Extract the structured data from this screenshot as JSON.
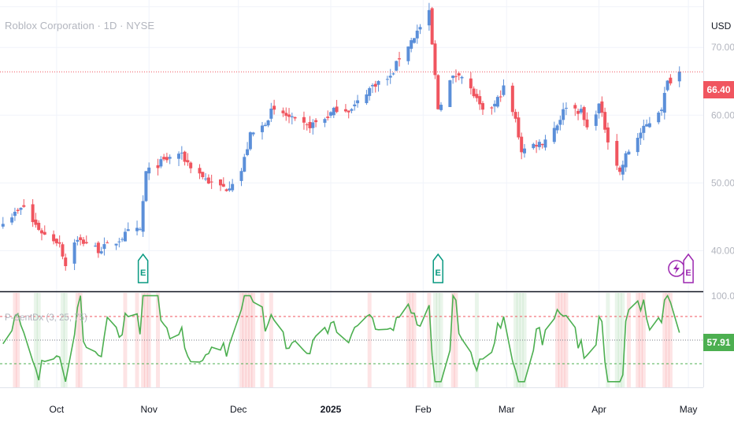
{
  "header": {
    "symbol_title": "Roblox Corporation · 1D · NYSE",
    "currency": "USD",
    "last_price_label": "66.40"
  },
  "indicator": {
    "title": "P-SentDx (3, 25, 75)",
    "value_label": "57.91",
    "line_color": "#4caf50",
    "upper_level": 75,
    "lower_level": 25,
    "mid_level": 50,
    "ylim": [
      0,
      100
    ],
    "axis_label": "100.00"
  },
  "colors": {
    "up_candle": "#5b8fd9",
    "down_candle": "#f0555f",
    "price_line": "#f0555f",
    "earnings": "#089981",
    "dividend": "#9c27b0",
    "grid": "#f0f3fa",
    "oversold_line": "#4caf50",
    "overbought_line": "#f0555f"
  },
  "events": [
    {
      "type": "earnings-icon",
      "label": "E",
      "date": "2024-10-30"
    },
    {
      "type": "earnings-icon",
      "label": "E",
      "date": "2025-02-06"
    },
    {
      "type": "lightning-icon",
      "label": "",
      "date": "2025-04-27"
    },
    {
      "type": "earnings-icon",
      "label": "E",
      "date": "2025-05-01"
    }
  ],
  "chart_data": {
    "type": "candlestick",
    "title": "Roblox Corporation · 1D · NYSE",
    "ylim": [
      34,
      77
    ],
    "y_ticks": [
      40,
      50,
      60,
      70
    ],
    "x_ticks": [
      "Oct",
      "Nov",
      "Dec",
      "2025",
      "Feb",
      "Mar",
      "Apr",
      "May"
    ],
    "x_range": [
      "2024-09-12",
      "2025-05-06"
    ],
    "grid": true,
    "last_price": 66.4,
    "anchors": [
      [
        "2024-09-13",
        44.5
      ],
      [
        "2024-09-18",
        45.7
      ],
      [
        "2024-09-20",
        46.5
      ],
      [
        "2024-09-23",
        44.2
      ],
      [
        "2024-09-27",
        42.3
      ],
      [
        "2024-10-02",
        41.2
      ],
      [
        "2024-10-04",
        37.8
      ],
      [
        "2024-10-07",
        41.5
      ],
      [
        "2024-10-11",
        41.2
      ],
      [
        "2024-10-15",
        40.1
      ],
      [
        "2024-10-17",
        40.5
      ],
      [
        "2024-10-21",
        41.3
      ],
      [
        "2024-10-25",
        42.7
      ],
      [
        "2024-10-29",
        43.0
      ],
      [
        "2024-10-31",
        51.5
      ],
      [
        "2024-11-05",
        53.0
      ],
      [
        "2024-11-11",
        54.4
      ],
      [
        "2024-11-15",
        52.5
      ],
      [
        "2024-11-19",
        51.0
      ],
      [
        "2024-11-22",
        49.8
      ],
      [
        "2024-11-27",
        49.2
      ],
      [
        "2024-12-02",
        51.8
      ],
      [
        "2024-12-05",
        57.0
      ],
      [
        "2024-12-09",
        58.3
      ],
      [
        "2024-12-12",
        60.5
      ],
      [
        "2024-12-16",
        60.2
      ],
      [
        "2024-12-20",
        59.0
      ],
      [
        "2024-12-24",
        58.3
      ],
      [
        "2024-12-30",
        59.5
      ],
      [
        "2025-01-03",
        61.0
      ],
      [
        "2025-01-08",
        60.8
      ],
      [
        "2025-01-13",
        63.5
      ],
      [
        "2025-01-16",
        64.7
      ],
      [
        "2025-01-21",
        65.5
      ],
      [
        "2025-01-24",
        68.5
      ],
      [
        "2025-01-28",
        71.0
      ],
      [
        "2025-02-03",
        75.0
      ],
      [
        "2025-02-06",
        61.0
      ],
      [
        "2025-02-10",
        65.0
      ],
      [
        "2025-02-13",
        66.4
      ],
      [
        "2025-02-18",
        63.0
      ],
      [
        "2025-02-21",
        60.3
      ],
      [
        "2025-02-25",
        61.5
      ],
      [
        "2025-02-28",
        64.0
      ],
      [
        "2025-03-04",
        59.2
      ],
      [
        "2025-03-06",
        54.8
      ],
      [
        "2025-03-11",
        55.8
      ],
      [
        "2025-03-13",
        56.0
      ],
      [
        "2025-03-18",
        58.7
      ],
      [
        "2025-03-21",
        61.5
      ],
      [
        "2025-03-26",
        60.5
      ],
      [
        "2025-03-28",
        58.0
      ],
      [
        "2025-04-01",
        61.5
      ],
      [
        "2025-04-04",
        56.5
      ],
      [
        "2025-04-08",
        51.5
      ],
      [
        "2025-04-10",
        54.0
      ],
      [
        "2025-04-14",
        56.8
      ],
      [
        "2025-04-17",
        58.5
      ],
      [
        "2025-04-22",
        61.2
      ],
      [
        "2025-04-24",
        64.8
      ],
      [
        "2025-04-28",
        66.4
      ]
    ]
  }
}
